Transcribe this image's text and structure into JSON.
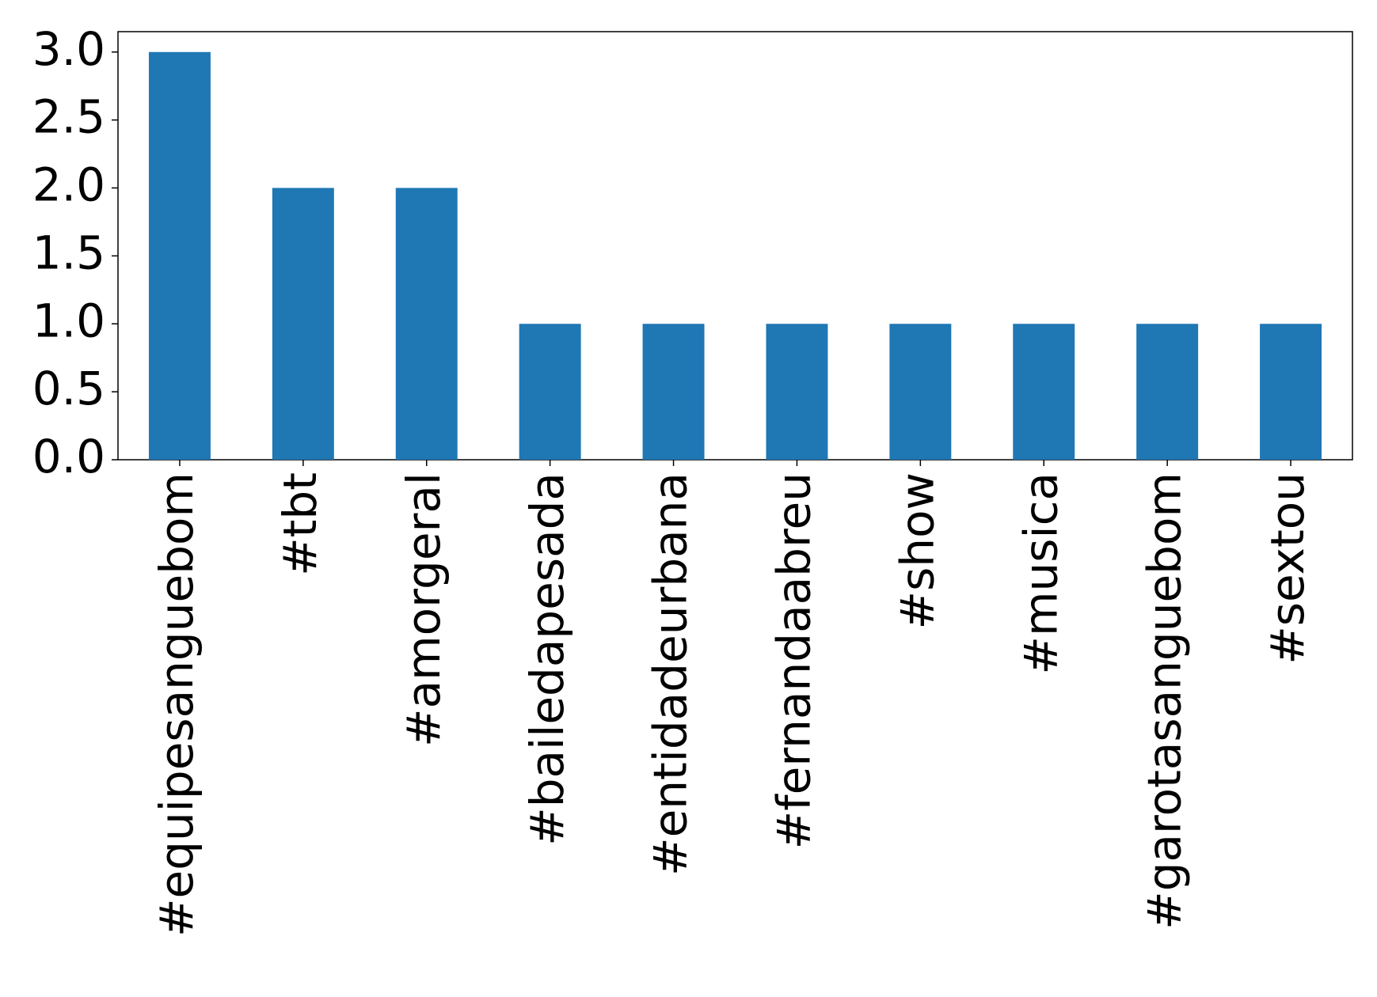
{
  "chart_data": {
    "type": "bar",
    "categories": [
      "#equipesanguebom",
      "#tbt",
      "#amorgeral",
      "#bailedapesada",
      "#entidadeurbana",
      "#fernandaabreu",
      "#show",
      "#musica",
      "#garotasanguebom",
      "#sextou"
    ],
    "values": [
      3,
      2,
      2,
      1,
      1,
      1,
      1,
      1,
      1,
      1
    ],
    "color": "#1f77b4",
    "ylim": [
      0,
      3.15
    ],
    "yticks": [
      {
        "value": 0,
        "label": "0.0"
      },
      0.5,
      {
        "value": 1,
        "label": "1.0"
      },
      1.5,
      {
        "value": 2,
        "label": "2.0"
      },
      2.5,
      {
        "value": 3,
        "label": "3.0"
      }
    ],
    "grid": false
  }
}
